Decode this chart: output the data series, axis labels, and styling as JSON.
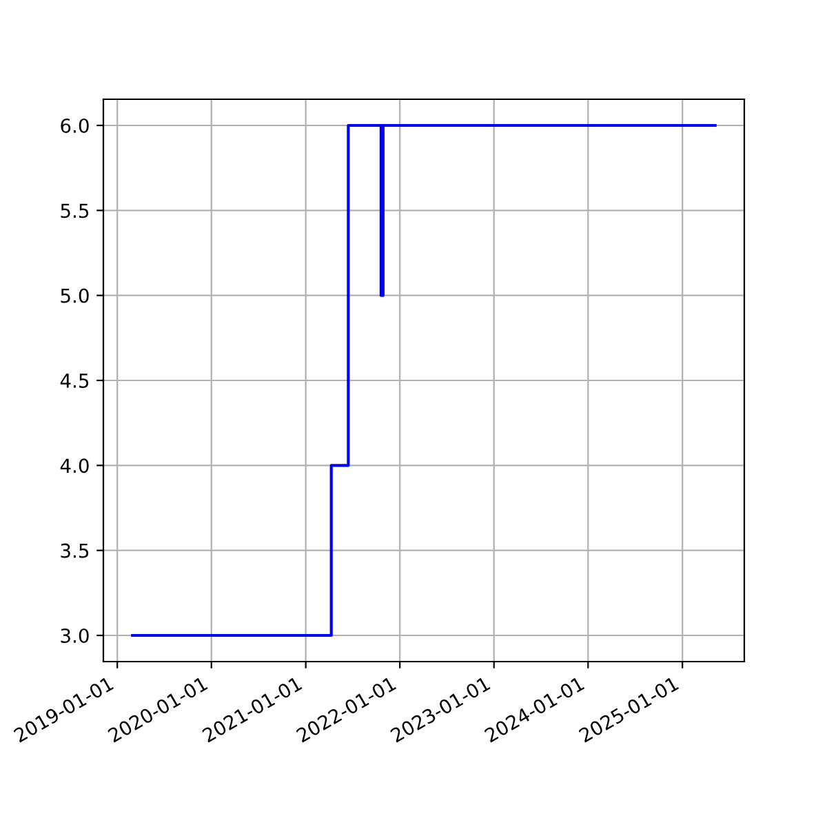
{
  "chart_data": {
    "type": "step",
    "x": [
      "2019-03-01",
      "2021-04-10",
      "2021-06-15",
      "2021-10-20",
      "2021-10-22",
      "2021-10-26",
      "2021-10-28",
      "2025-05-08"
    ],
    "series": [
      {
        "color": "#0000ff",
        "values": [
          3,
          4,
          6,
          5,
          6,
          5,
          6,
          6
        ]
      }
    ],
    "xlim": [
      "2018-11-08",
      "2025-08-29"
    ],
    "xticks": [
      "2019-01-01",
      "2020-01-01",
      "2021-01-01",
      "2022-01-01",
      "2023-01-01",
      "2024-01-01",
      "2025-01-01"
    ],
    "ylim": [
      2.846,
      6.154
    ],
    "yticks": [
      {
        "value": 3,
        "label": "3.0"
      },
      {
        "value": 3.5,
        "label": "3.5"
      },
      {
        "value": 4,
        "label": "4.0"
      },
      {
        "value": 4.5,
        "label": "4.5"
      },
      {
        "value": 5,
        "label": "5.0"
      },
      {
        "value": 5.5,
        "label": "5.5"
      },
      {
        "value": 6,
        "label": "6.0"
      }
    ],
    "grid": true,
    "line_style": "solid",
    "marker": "none"
  }
}
